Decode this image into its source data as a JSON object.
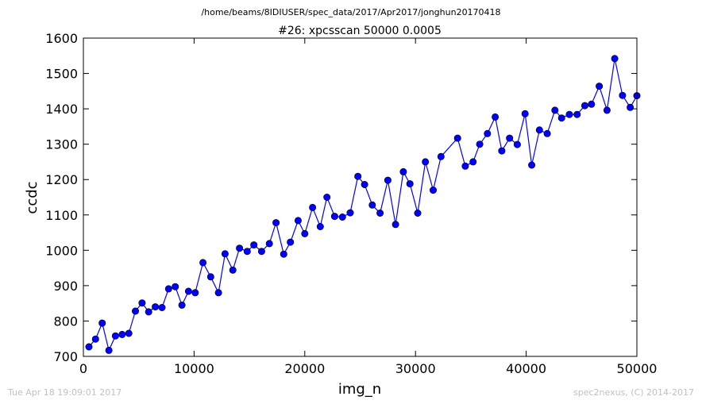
{
  "chart_data": {
    "type": "line",
    "suptitle": "/home/beams/8IDIUSER/spec_data/2017/Apr2017/jonghun20170418",
    "title": "#26: xpcsscan 50000 0.0005",
    "xlabel": "img_n",
    "ylabel": "ccdc",
    "xlim": [
      0,
      50000
    ],
    "ylim": [
      700,
      1600
    ],
    "xticks": [
      0,
      10000,
      20000,
      30000,
      40000,
      50000
    ],
    "yticks": [
      700,
      800,
      900,
      1000,
      1100,
      1200,
      1300,
      1400,
      1500,
      1600
    ],
    "grid": false,
    "line_color": "#0000ff",
    "marker_color": "#0000ff",
    "series": [
      {
        "x": [
          500,
          1100,
          1700,
          2300,
          2900,
          3500,
          4100,
          4700,
          5300,
          5900,
          6500,
          7100,
          7700,
          8300,
          8900,
          9500,
          10100,
          10800,
          11500,
          12200,
          12800,
          13500,
          14100,
          14800,
          15400,
          16100,
          16800,
          17400,
          18100,
          18700,
          19400,
          20000,
          20700,
          21400,
          22000,
          22700,
          23400,
          24100,
          24800,
          25400,
          26100,
          26800,
          27500,
          28200,
          28900,
          29500,
          30200,
          30900,
          31600,
          32300,
          33800,
          34500,
          35200,
          35800,
          36500,
          37200,
          37800,
          38500,
          39200,
          39900,
          40500,
          41200,
          41900,
          42600,
          43200,
          43900,
          44600,
          45300,
          45900,
          46600,
          47300,
          48000,
          48700,
          49400,
          50000
        ],
        "y": [
          727,
          749,
          794,
          717,
          758,
          762,
          765,
          828,
          851,
          826,
          840,
          838,
          891,
          897,
          845,
          884,
          880,
          965,
          925,
          880,
          990,
          944,
          1006,
          997,
          1015,
          997,
          1019,
          1078,
          989,
          1023,
          1084,
          1047,
          1121,
          1067,
          1150,
          1096,
          1094,
          1106,
          1209,
          1186,
          1128,
          1105,
          1198,
          1073,
          1222,
          1188,
          1105,
          1250,
          1170,
          1265,
          1317,
          1238,
          1250,
          1300,
          1330,
          1377,
          1281,
          1317,
          1299,
          1386,
          1241,
          1340,
          1330,
          1396,
          1374,
          1384,
          1384,
          1409,
          1413,
          1464,
          1396,
          1542,
          1438,
          1404,
          1437
        ]
      }
    ]
  },
  "footer": {
    "timestamp": "Tue Apr 18 19:09:01 2017",
    "credit": "spec2nexus, (C) 2014-2017"
  }
}
